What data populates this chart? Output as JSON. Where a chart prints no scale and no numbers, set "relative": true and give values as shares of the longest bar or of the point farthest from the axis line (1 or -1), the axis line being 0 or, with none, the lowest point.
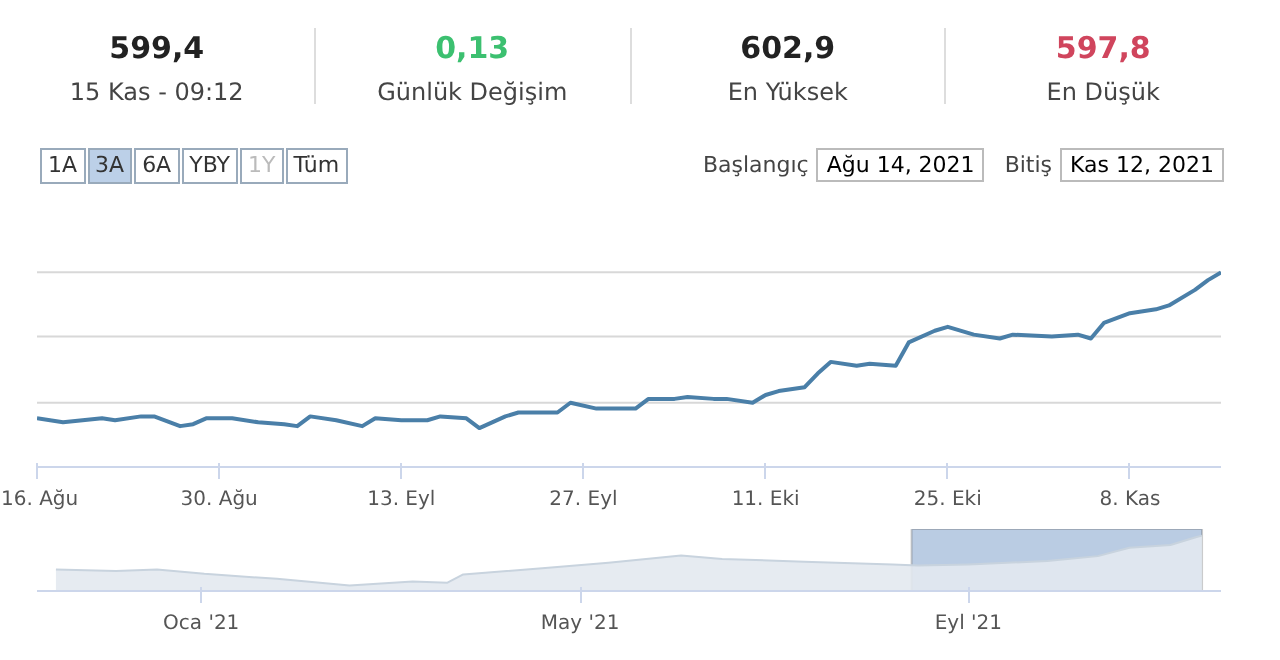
{
  "chart_data": [
    {
      "type": "other",
      "annotations": [
        "599,4",
        "15 Kas - 09:12",
        "0,13",
        "Günlük Değişim",
        "602,9",
        "En Yüksek",
        "597,8",
        "En Düşük",
        "1A",
        "3A",
        "6A",
        "YBY",
        "1Y",
        "Tüm",
        "Başlangıç",
        "Ağu 14, 2021",
        "Bitiş",
        "Kas 12, 2021"
      ]
    },
    {
      "type": "line",
      "relative": true,
      "ref_lines": [
        {
          "axis": "y",
          "value": 0.33,
          "color": "#d8d8d8"
        },
        {
          "axis": "y",
          "value": 0.67,
          "color": "#d8d8d8"
        },
        {
          "axis": "y",
          "value": 1.0,
          "color": "#d8d8d8"
        }
      ],
      "xlim": [
        "2021-08-16",
        "2021-11-15"
      ],
      "xticks": [
        {
          "value": "2021-08-16",
          "label": "16. Ağu"
        },
        {
          "value": "2021-08-30",
          "label": "30. Ağu"
        },
        {
          "value": "2021-09-13",
          "label": "13. Eyl"
        },
        {
          "value": "2021-09-27",
          "label": "27. Eyl"
        },
        {
          "value": "2021-10-11",
          "label": "11. Eki"
        },
        {
          "value": "2021-10-25",
          "label": "25. Eki"
        },
        {
          "value": "2021-11-08",
          "label": "8. Kas"
        }
      ],
      "x": [
        "2021-08-16",
        "2021-08-18",
        "2021-08-21",
        "2021-08-22",
        "2021-08-24",
        "2021-08-25",
        "2021-08-27",
        "2021-08-28",
        "2021-08-29",
        "2021-08-31",
        "2021-09-02",
        "2021-09-04",
        "2021-09-05",
        "2021-09-06",
        "2021-09-08",
        "2021-09-10",
        "2021-09-11",
        "2021-09-13",
        "2021-09-15",
        "2021-09-16",
        "2021-09-18",
        "2021-09-19",
        "2021-09-21",
        "2021-09-22",
        "2021-09-24",
        "2021-09-25",
        "2021-09-26",
        "2021-09-28",
        "2021-09-30",
        "2021-10-01",
        "2021-10-02",
        "2021-10-04",
        "2021-10-05",
        "2021-10-07",
        "2021-10-08",
        "2021-10-10",
        "2021-10-11",
        "2021-10-12",
        "2021-10-14",
        "2021-10-15",
        "2021-10-16",
        "2021-10-18",
        "2021-10-19",
        "2021-10-21",
        "2021-10-22",
        "2021-10-24",
        "2021-10-25",
        "2021-10-27",
        "2021-10-29",
        "2021-10-30",
        "2021-11-02",
        "2021-11-04",
        "2021-11-05",
        "2021-11-06",
        "2021-11-08",
        "2021-11-10",
        "2021-11-11",
        "2021-11-13",
        "2021-11-14",
        "2021-11-15"
      ],
      "series": [
        {
          "color": "#4a7fa8",
          "values": [
            0.25,
            0.23,
            0.25,
            0.24,
            0.26,
            0.26,
            0.21,
            0.22,
            0.25,
            0.25,
            0.23,
            0.22,
            0.21,
            0.26,
            0.24,
            0.21,
            0.25,
            0.24,
            0.24,
            0.26,
            0.25,
            0.2,
            0.26,
            0.28,
            0.28,
            0.28,
            0.33,
            0.3,
            0.3,
            0.3,
            0.35,
            0.35,
            0.36,
            0.35,
            0.35,
            0.33,
            0.37,
            0.39,
            0.41,
            0.48,
            0.54,
            0.52,
            0.53,
            0.52,
            0.64,
            0.7,
            0.72,
            0.68,
            0.66,
            0.68,
            0.67,
            0.68,
            0.66,
            0.74,
            0.79,
            0.81,
            0.83,
            0.91,
            0.96,
            1.0
          ]
        }
      ]
    },
    {
      "type": "area",
      "relative": true,
      "xlim": [
        "2020-11-10",
        "2021-11-20"
      ],
      "xticks": [
        {
          "value": "2021-01-01",
          "label": "Oca '21"
        },
        {
          "value": "2021-05-01",
          "label": "May '21"
        },
        {
          "value": "2021-09-01",
          "label": "Eyl '21"
        }
      ],
      "bands": [
        {
          "axis": "x",
          "from": "2021-08-14",
          "to": "2021-11-14",
          "color": "#a9bfdc"
        }
      ],
      "x": [
        "2020-11-16",
        "2020-12-05",
        "2020-12-18",
        "2021-01-02",
        "2021-01-25",
        "2021-02-17",
        "2021-03-09",
        "2021-03-20",
        "2021-03-25",
        "2021-04-19",
        "2021-05-10",
        "2021-06-02",
        "2021-06-15",
        "2021-07-11",
        "2021-08-08",
        "2021-08-16",
        "2021-09-01",
        "2021-09-26",
        "2021-10-12",
        "2021-10-22",
        "2021-11-04",
        "2021-11-12",
        "2021-11-14"
      ],
      "series": [
        {
          "color": "#e3e9ef",
          "values": [
            0.39,
            0.36,
            0.39,
            0.31,
            0.22,
            0.1,
            0.17,
            0.15,
            0.3,
            0.41,
            0.51,
            0.64,
            0.58,
            0.53,
            0.48,
            0.46,
            0.48,
            0.54,
            0.63,
            0.78,
            0.83,
            0.97,
            1.0
          ]
        }
      ]
    }
  ]
}
